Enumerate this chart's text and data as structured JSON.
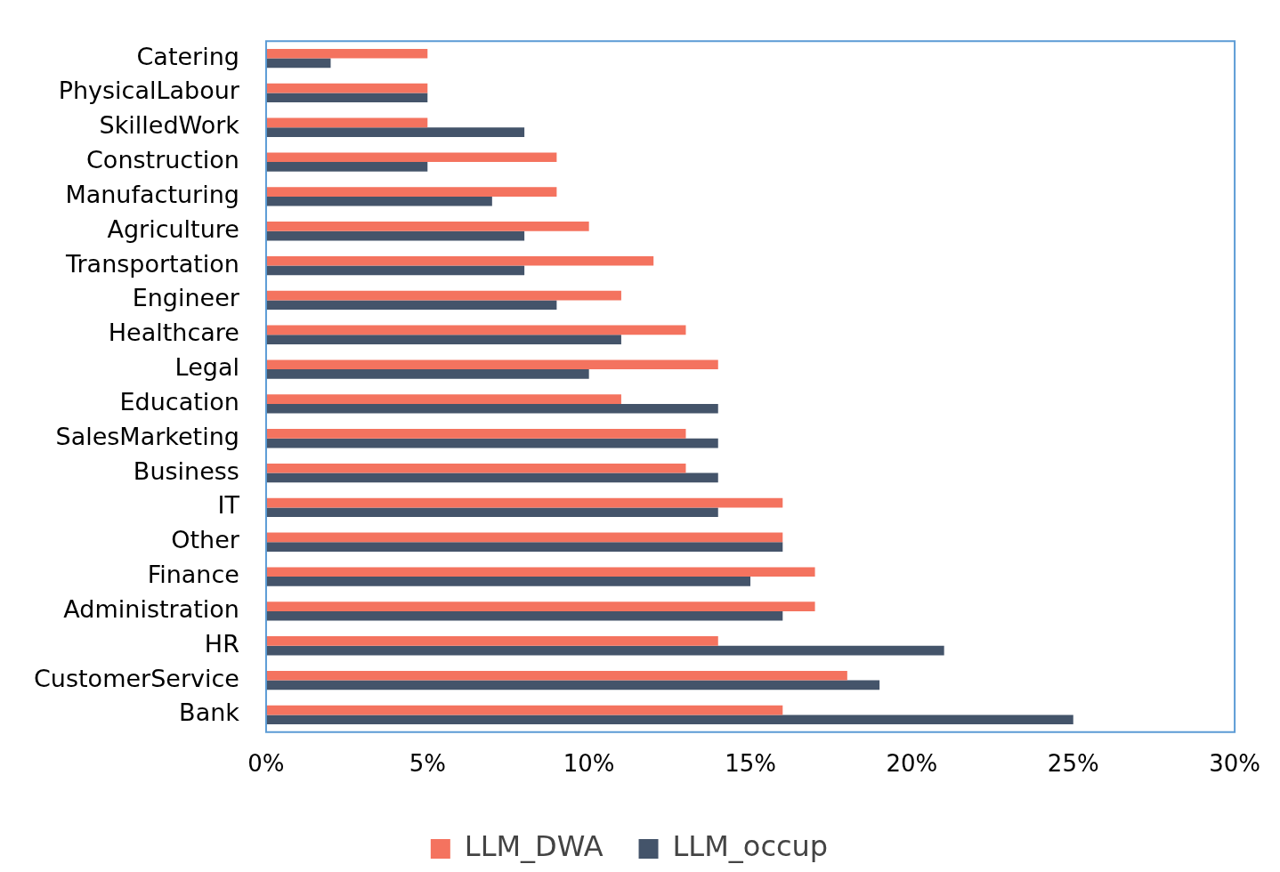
{
  "chart_data": {
    "type": "bar",
    "orientation": "horizontal",
    "categories": [
      "Catering",
      "PhysicalLabour",
      "SkilledWork",
      "Construction",
      "Manufacturing",
      "Agriculture",
      "Transportation",
      "Engineer",
      "Healthcare",
      "Legal",
      "Education",
      "SalesMarketing",
      "Business",
      "IT",
      "Other",
      "Finance",
      "Administration",
      "HR",
      "CustomerService",
      "Bank"
    ],
    "series": [
      {
        "name": "LLM_DWA",
        "color": "#f4735f",
        "values": [
          5,
          5,
          5,
          9,
          9,
          10,
          12,
          11,
          13,
          14,
          11,
          13,
          13,
          16,
          16,
          17,
          17,
          14,
          18,
          16
        ]
      },
      {
        "name": "LLM_occup",
        "color": "#44546a",
        "values": [
          2,
          5,
          8,
          5,
          7,
          8,
          8,
          9,
          11,
          10,
          14,
          14,
          14,
          14,
          16,
          15,
          16,
          21,
          19,
          25
        ]
      }
    ],
    "xlim": [
      0,
      30
    ],
    "xticks": [
      {
        "value": 0,
        "label": "0%"
      },
      {
        "value": 5,
        "label": "5%"
      },
      {
        "value": 10,
        "label": "10%"
      },
      {
        "value": 15,
        "label": "15%"
      },
      {
        "value": 20,
        "label": "20%"
      },
      {
        "value": 25,
        "label": "25%"
      },
      {
        "value": 30,
        "label": "30%"
      }
    ],
    "grid": false,
    "legend": "bottom"
  }
}
